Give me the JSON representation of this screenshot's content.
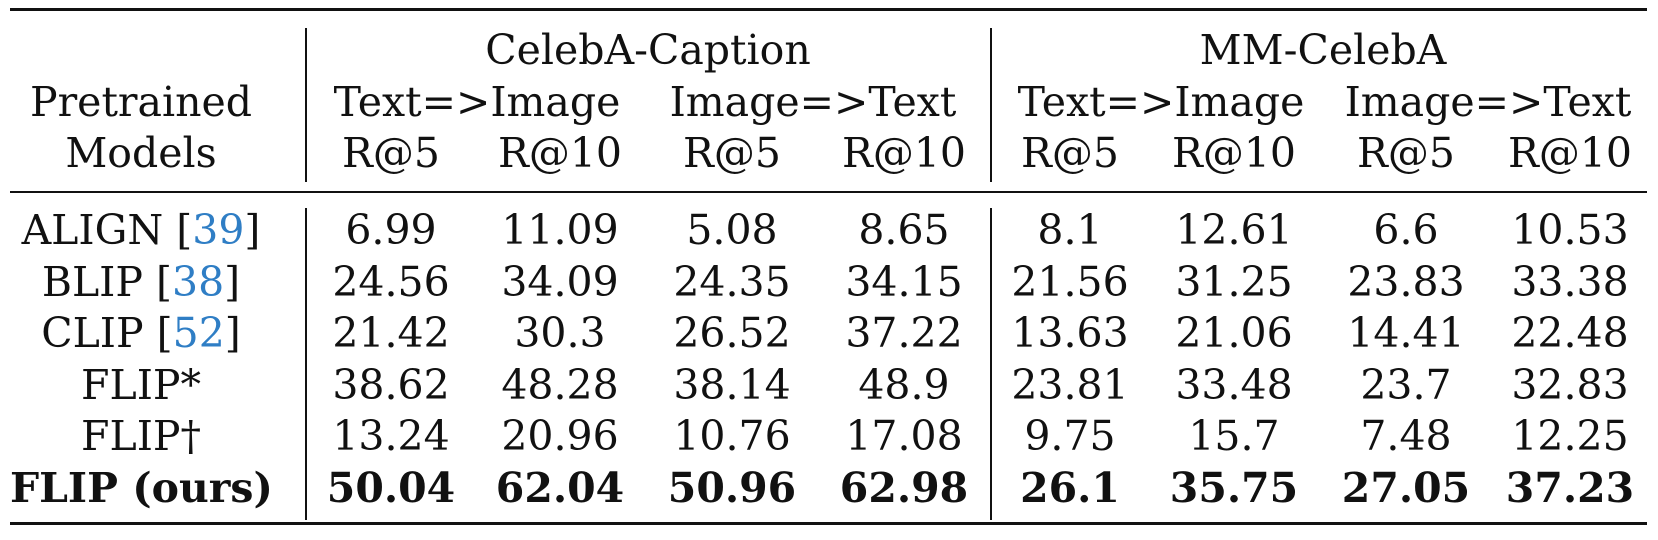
{
  "table": {
    "header": {
      "group_1": "CelebA-Caption",
      "group_2": "MM-CelebA",
      "row_label_line1": "Pretrained",
      "row_label_line2": "Models",
      "t2i": "Text=>Image",
      "i2t": "Image=>Text",
      "r5": "R@5",
      "r10": "R@10"
    },
    "rows": [
      {
        "name": "ALIGN [",
        "cite": "39",
        "close": "]",
        "values": [
          "6.99",
          "11.09",
          "5.08",
          "8.65",
          "8.1",
          "12.61",
          "6.6",
          "10.53"
        ]
      },
      {
        "name": "BLIP [",
        "cite": "38",
        "close": "]",
        "values": [
          "24.56",
          "34.09",
          "24.35",
          "34.15",
          "21.56",
          "31.25",
          "23.83",
          "33.38"
        ]
      },
      {
        "name": "CLIP [",
        "cite": "52",
        "close": "]",
        "values": [
          "21.42",
          "30.3",
          "26.52",
          "37.22",
          "13.63",
          "21.06",
          "14.41",
          "22.48"
        ]
      },
      {
        "name": "FLIP*",
        "cite": "",
        "close": "",
        "values": [
          "38.62",
          "48.28",
          "38.14",
          "48.9",
          "23.81",
          "33.48",
          "23.7",
          "32.83"
        ]
      },
      {
        "name": "FLIP†",
        "cite": "",
        "close": "",
        "values": [
          "13.24",
          "20.96",
          "10.76",
          "17.08",
          "9.75",
          "15.7",
          "7.48",
          "12.25"
        ]
      },
      {
        "name": "FLIP (ours)",
        "cite": "",
        "close": "",
        "bold": true,
        "values": [
          "50.04",
          "62.04",
          "50.96",
          "62.98",
          "26.1",
          "35.75",
          "27.05",
          "37.23"
        ]
      }
    ]
  }
}
